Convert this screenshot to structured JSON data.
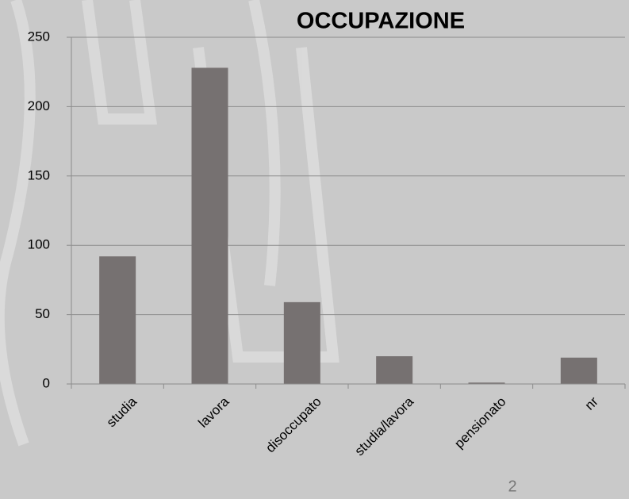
{
  "chart_data": {
    "type": "bar",
    "title": "OCCUPAZIONE",
    "categories": [
      "studia",
      "lavora",
      "disoccupato",
      "studia/lavora",
      "pensionato",
      "nr"
    ],
    "values": [
      92,
      228,
      59,
      20,
      1,
      19
    ],
    "color": "#767171",
    "ylim": [
      0,
      250
    ],
    "yticks": [
      0,
      50,
      100,
      150,
      200,
      250
    ],
    "grid": true
  },
  "slide_number": "2"
}
